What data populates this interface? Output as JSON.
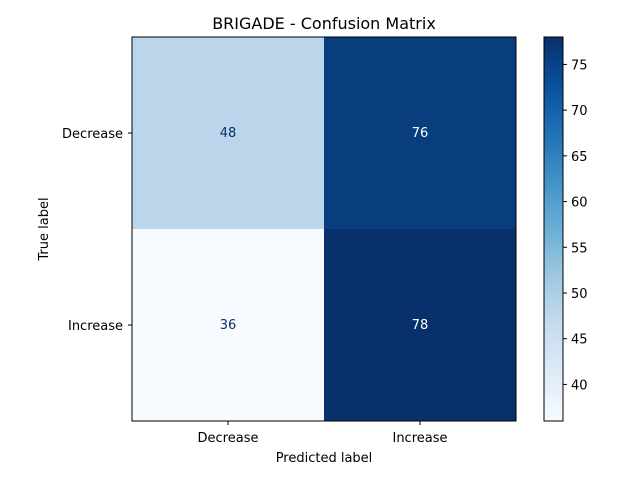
{
  "chart_data": {
    "type": "heatmap",
    "title": "BRIGADE - Confusion Matrix",
    "xlabel": "Predicted label",
    "ylabel": "True label",
    "x_categories": [
      "Decrease",
      "Increase"
    ],
    "y_categories": [
      "Decrease",
      "Increase"
    ],
    "values": [
      [
        48,
        76
      ],
      [
        36,
        78
      ]
    ],
    "colormap": "Blues",
    "colorbar": {
      "min": 36,
      "max": 78,
      "ticks": [
        40,
        45,
        50,
        55,
        60,
        65,
        70,
        75
      ]
    },
    "colors": {
      "low": "#f7fbff",
      "high": "#08306b",
      "text_dark": "#08306b",
      "text_light": "#ffffff"
    },
    "grid": false
  }
}
